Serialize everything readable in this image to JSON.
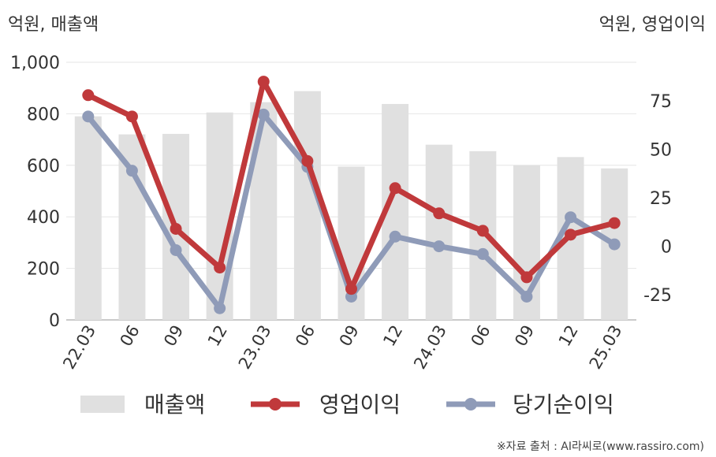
{
  "chart_data": {
    "type": "bar+line",
    "left_axis_unit": "억원, 매출액",
    "right_axis_unit": "억원, 영업이익",
    "categories": [
      "22.03",
      "06",
      "09",
      "12",
      "23.03",
      "06",
      "09",
      "12",
      "24.03",
      "06",
      "09",
      "12",
      "25.03"
    ],
    "series": [
      {
        "name": "매출액",
        "type": "bar",
        "axis": "left",
        "color": "#e0e0e0",
        "values": [
          790,
          720,
          722,
          805,
          845,
          888,
          595,
          838,
          680,
          655,
          600,
          632,
          588
        ]
      },
      {
        "name": "영업이익",
        "type": "line",
        "axis": "right",
        "color": "#c0393b",
        "values": [
          78,
          67,
          9,
          -11,
          85,
          44,
          -22,
          30,
          17,
          8,
          -16,
          6,
          12
        ]
      },
      {
        "name": "당기순이익",
        "type": "line",
        "axis": "right",
        "color": "#8f9bb8",
        "values": [
          67,
          39,
          -2,
          -32,
          68,
          41,
          -26,
          5,
          0,
          -4,
          -26,
          15,
          1
        ]
      }
    ],
    "left_axis": {
      "min": 0,
      "max": 1000,
      "ticks": [
        0,
        200,
        400,
        600,
        800,
        1000
      ],
      "tick_labels": [
        "0",
        "200",
        "400",
        "600",
        "800",
        "1,000"
      ]
    },
    "right_axis": {
      "min": -38,
      "max": 95,
      "ticks": [
        -25,
        0,
        25,
        50,
        75
      ],
      "tick_labels": [
        "-25",
        "0",
        "25",
        "50",
        "75"
      ]
    },
    "grid": true,
    "legend_position": "bottom"
  },
  "source_text": "※자료 출처 : AI라씨로(www.rassiro.com)"
}
